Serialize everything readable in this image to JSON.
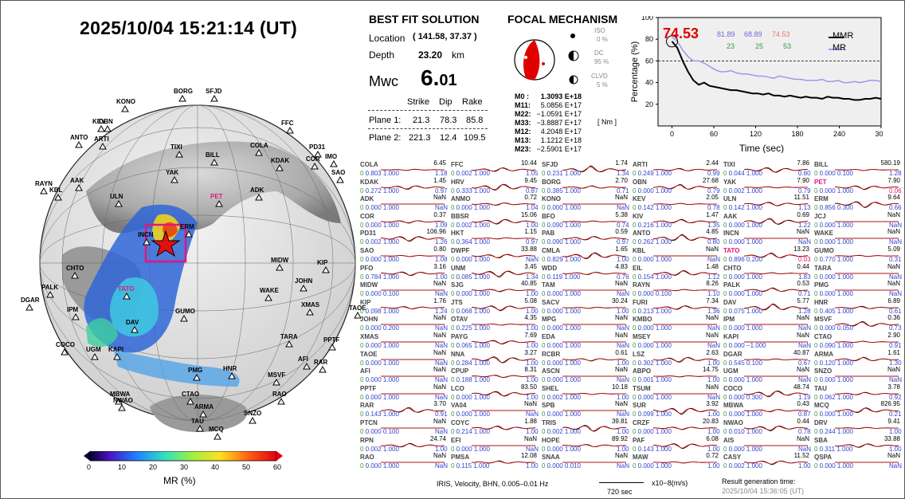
{
  "header": {
    "datetime": "2025/10/04  15:21:14 (UT)"
  },
  "best_fit": {
    "title": "BEST FIT SOLUTION",
    "location_label": "Location",
    "location_value": "( 141.58,  37.37 )",
    "depth_label": "Depth",
    "depth_value": "23.20",
    "depth_unit": "km",
    "mw_label": "Mwc",
    "mw_int": "6.",
    "mw_dec": "01",
    "col_strike": "Strike",
    "col_dip": "Dip",
    "col_rake": "Rake",
    "planes": [
      {
        "label": "Plane 1:",
        "strike": "21.3",
        "dip": "78.3",
        "rake": "85.8"
      },
      {
        "label": "Plane 2:",
        "strike": "221.3",
        "dip": "12.4",
        "rake": "109.5"
      }
    ]
  },
  "focal": {
    "title": "FOCAL MECHANISM",
    "iso_label": "ISO",
    "iso_value": "0 %",
    "dc_label": "DC",
    "dc_value": "95 %",
    "clvd_label": "CLVD",
    "clvd_value": "5 %",
    "moments": [
      {
        "k": "M0 :",
        "v": "1.3093 E+18"
      },
      {
        "k": "M11:",
        "v": "5.0856 E+17"
      },
      {
        "k": "M22:",
        "v": "−1.0591 E+17"
      },
      {
        "k": "M33:",
        "v": "−3.8887 E+17"
      },
      {
        "k": "M12:",
        "v": "4.2048 E+17"
      },
      {
        "k": "M13:",
        "v": "1.1212 E+18"
      },
      {
        "k": "M23:",
        "v": "−2.5901 E+17"
      }
    ],
    "unit": "[ Nm ]"
  },
  "mr_chart": {
    "ylabel": "Percentage (%)",
    "xlabel": "Time (sec)",
    "yticks": [
      "20",
      "40",
      "60",
      "80",
      "100"
    ],
    "xticks": [
      "0",
      "60",
      "120",
      "180",
      "240",
      "300"
    ],
    "big_value": "74.53",
    "vals_row1": [
      "81.89",
      "68.89",
      "74.53"
    ],
    "vals_row2": [
      "23",
      "25",
      "53"
    ],
    "legend_mmr": "MMR",
    "legend_mr": "MR",
    "mmr_series": [
      78,
      72,
      60,
      50,
      42,
      38,
      40,
      37,
      36,
      35,
      34,
      33,
      33,
      32,
      31,
      30,
      30,
      29,
      30,
      28,
      28,
      27,
      28,
      27,
      26,
      27,
      26,
      26,
      25,
      27,
      26,
      26,
      25,
      25,
      24,
      24,
      25,
      25,
      26,
      25
    ],
    "mr_series": [
      82,
      78,
      70,
      64,
      60,
      60,
      58,
      55,
      52,
      50,
      50,
      51,
      49,
      48,
      48,
      47,
      46,
      46,
      45,
      44,
      46,
      45,
      44,
      43,
      43,
      42,
      42,
      42,
      43,
      41,
      41,
      42,
      40,
      40,
      41,
      40,
      41,
      42,
      42,
      41
    ]
  },
  "colorbar": {
    "label": "MR (%)",
    "ticks": [
      "0",
      "10",
      "20",
      "30",
      "40",
      "50",
      "60"
    ]
  },
  "globe_stations": [
    {
      "name": "BORG"
    },
    {
      "name": "SFJD"
    },
    {
      "name": "KONO"
    },
    {
      "name": "KEV"
    },
    {
      "name": "OBN"
    },
    {
      "name": "ANTO"
    },
    {
      "name": "ARTI"
    },
    {
      "name": "FFC"
    },
    {
      "name": "PD31"
    },
    {
      "name": "COLA"
    },
    {
      "name": "TIXI"
    },
    {
      "name": "BILL"
    },
    {
      "name": "KDAK"
    },
    {
      "name": "COR"
    },
    {
      "name": "IMO"
    },
    {
      "name": "SAO"
    },
    {
      "name": "RAYN"
    },
    {
      "name": "KBL"
    },
    {
      "name": "AAK"
    },
    {
      "name": "ULN"
    },
    {
      "name": "YAK"
    },
    {
      "name": "PET"
    },
    {
      "name": "ADK"
    },
    {
      "name": "ERM"
    },
    {
      "name": "INCN"
    },
    {
      "name": "KIP"
    },
    {
      "name": "MIDW"
    },
    {
      "name": "CHTO"
    },
    {
      "name": "TATO"
    },
    {
      "name": "JOHN"
    },
    {
      "name": "PALK"
    },
    {
      "name": "DGAR"
    },
    {
      "name": "WAKE"
    },
    {
      "name": "XMAS"
    },
    {
      "name": "TAOE"
    },
    {
      "name": "IPM"
    },
    {
      "name": "GUMO"
    },
    {
      "name": "DAV"
    },
    {
      "name": "TARA"
    },
    {
      "name": "COCO"
    },
    {
      "name": "UGM"
    },
    {
      "name": "KAPI"
    },
    {
      "name": "PPTF"
    },
    {
      "name": "AFI"
    },
    {
      "name": "RAR"
    },
    {
      "name": "PMG"
    },
    {
      "name": "HNR"
    },
    {
      "name": "MSVF"
    },
    {
      "name": "MBWA"
    },
    {
      "name": "CTAO"
    },
    {
      "name": "RAO"
    },
    {
      "name": "NWAO"
    },
    {
      "name": "ARMA"
    },
    {
      "name": "SNZO"
    },
    {
      "name": "TAU"
    },
    {
      "name": "MCQ"
    }
  ],
  "stations": [
    [
      "COLA",
      "6.45",
      "0.803",
      "1.000",
      "1.18"
    ],
    [
      "FFC",
      "10.44",
      "0.002",
      "1.000",
      "1.05"
    ],
    [
      "SFJD",
      "1.74",
      "0.231",
      "1.000",
      "1.34"
    ],
    [
      "ARTI",
      "2.44",
      "0.249",
      "1.000",
      "0.99"
    ],
    [
      "TIXI",
      "7.86",
      "0.044",
      "1.000",
      "0.80"
    ],
    [
      "BILL",
      "580.19",
      "0.000",
      "0.100",
      "1.28"
    ],
    [
      "KDAK",
      "1.45",
      "0.272",
      "1.000",
      "0.97"
    ],
    [
      "HRV",
      "9.45",
      "0.333",
      "1.000",
      "0.87"
    ],
    [
      "BORG",
      "2.70",
      "0.385",
      "1.000",
      "0.71"
    ],
    [
      "OBN",
      "27.68",
      "0.000",
      "1.000",
      "0.79"
    ],
    [
      "YAK",
      "7.90",
      "0.002",
      "1.000",
      "0.79"
    ],
    [
      "PET",
      "7.90",
      "0.000",
      "1.000",
      "0.06"
    ],
    [
      "ADK",
      "NaN",
      "0.000",
      "1.000",
      "NaN"
    ],
    [
      "ANMO",
      "0.72",
      "0.000",
      "1.000",
      "1.04"
    ],
    [
      "KONO",
      "NaN",
      "0.000",
      "1.000",
      "NaN"
    ],
    [
      "KEV",
      "2.05",
      "0.142",
      "1.000",
      "0.78"
    ],
    [
      "ULN",
      "11.51",
      "0.142",
      "1.000",
      "1.13"
    ],
    [
      "ERM",
      "9.64",
      "0.856",
      "0.300",
      "0.66"
    ],
    [
      "COR",
      "0.37",
      "0.000",
      "1.000",
      "1.09"
    ],
    [
      "BBSR",
      "15.06",
      "0.002",
      "1.000",
      "1.00"
    ],
    [
      "BFO",
      "5.38",
      "0.090",
      "1.000",
      "0.74"
    ],
    [
      "KIV",
      "1.47",
      "0.216",
      "1.000",
      "1.35"
    ],
    [
      "AAK",
      "0.69",
      "0.000",
      "1.000",
      "1.22"
    ],
    [
      "JCJ",
      "NaN",
      "0.000",
      "1.000",
      "NaN"
    ],
    [
      "PD31",
      "106.96",
      "0.002",
      "1.000",
      "1.26"
    ],
    [
      "HKT",
      "1.15",
      "0.364",
      "1.000",
      "0.97"
    ],
    [
      "PAB",
      "0.59",
      "0.090",
      "1.000",
      "0.97"
    ],
    [
      "ANTO",
      "4.85",
      "0.262",
      "1.000",
      "0.80"
    ],
    [
      "INCN",
      "NaN",
      "0.000",
      "1.000",
      "NaN"
    ],
    [
      "WAKE",
      "NaN",
      "0.000",
      "1.000",
      "NaN"
    ],
    [
      "SAO",
      "0.80",
      "0.000",
      "1.000",
      "1.08"
    ],
    [
      "DWPF",
      "33.88",
      "0.000",
      "1.000",
      "NaN"
    ],
    [
      "CMLA",
      "1.65",
      "0.829",
      "1.000",
      "1.00"
    ],
    [
      "KBL",
      "NaN",
      "0.000",
      "1.000",
      "NaN"
    ],
    [
      "TATO",
      "13.23",
      "0.896",
      "0.200",
      "0.03"
    ],
    [
      "GUMO",
      "5.09",
      "0.770",
      "1.000",
      "0.31"
    ],
    [
      "PFO",
      "3.16",
      "0.784",
      "1.000",
      "1.00"
    ],
    [
      "UNM",
      "3.45",
      "0.085",
      "1.000",
      "1.34"
    ],
    [
      "WDD",
      "4.83",
      "0.119",
      "1.000",
      "0.76"
    ],
    [
      "EIL",
      "1.48",
      "0.154",
      "1.000",
      "1.12"
    ],
    [
      "CHTO",
      "0.44",
      "0.000",
      "1.000",
      "1.83"
    ],
    [
      "TARA",
      "NaN",
      "0.000",
      "1.000",
      "NaN"
    ],
    [
      "MIDW",
      "NaN",
      "0.000",
      "0.100",
      "NaN"
    ],
    [
      "SJG",
      "40.85",
      "0.000",
      "1.000",
      "1.00"
    ],
    [
      "TAM",
      "NaN",
      "0.000",
      "1.000",
      "NaN"
    ],
    [
      "RAYN",
      "8.26",
      "0.000",
      "0.100",
      "1.10"
    ],
    [
      "PALK",
      "0.53",
      "0.000",
      "1.000",
      "0.71"
    ],
    [
      "PMG",
      "NaN",
      "0.000",
      "1.000",
      "NaN"
    ],
    [
      "KIP",
      "1.76",
      "0.098",
      "1.000",
      "1.24"
    ],
    [
      "JTS",
      "5.08",
      "0.068",
      "1.000",
      "1.00"
    ],
    [
      "SACV",
      "30.24",
      "0.000",
      "1.000",
      "1.00"
    ],
    [
      "FURI",
      "7.34",
      "0.213",
      "1.000",
      "1.36"
    ],
    [
      "DAV",
      "5.77",
      "0.075",
      "1.000",
      "1.28"
    ],
    [
      "HNR",
      "6.89",
      "0.405",
      "1.000",
      "0.61"
    ],
    [
      "JOHN",
      "NaN",
      "0.000",
      "0.200",
      "NaN"
    ],
    [
      "OTAV",
      "4.35",
      "0.225",
      "1.000",
      "1.00"
    ],
    [
      "MPG",
      "NaN",
      "0.000",
      "1.000",
      "NaN"
    ],
    [
      "KMBO",
      "NaN",
      "0.000",
      "1.000",
      "NaN"
    ],
    [
      "IPM",
      "NaN",
      "0.000",
      "1.000",
      "NaN"
    ],
    [
      "MSVF",
      "0.36",
      "0.000",
      "0.050",
      "0.73"
    ],
    [
      "XMAS",
      "NaN",
      "0.000",
      "1.000",
      "NaN"
    ],
    [
      "PAYG",
      "7.69",
      "0.065",
      "1.000",
      "1.00"
    ],
    [
      "EDA",
      "NaN",
      "0.000",
      "1.000",
      "NaN"
    ],
    [
      "MSEY",
      "NaN",
      "0.000",
      "1.000",
      "NaN"
    ],
    [
      "KAPI",
      "NaN",
      "0.000",
      "−1.000",
      "NaN"
    ],
    [
      "CTAO",
      "2.90",
      "0.090",
      "1.000",
      "0.91"
    ],
    [
      "TAOE",
      "NaN",
      "0.000",
      "1.000",
      "NaN"
    ],
    [
      "NNA",
      "3.27",
      "0.284",
      "1.000",
      "1.00"
    ],
    [
      "RCBR",
      "0.61",
      "0.000",
      "1.000",
      "1.00"
    ],
    [
      "LSZ",
      "2.63",
      "0.302",
      "1.000",
      "1.00"
    ],
    [
      "DGAR",
      "40.87",
      "0.545",
      "0.100",
      "0.67"
    ],
    [
      "ARMA",
      "1.61",
      "0.120",
      "1.000",
      "1.30"
    ],
    [
      "AFI",
      "NaN",
      "0.000",
      "1.000",
      "NaN"
    ],
    [
      "CPUP",
      "8.31",
      "0.188",
      "1.000",
      "1.00"
    ],
    [
      "ASCN",
      "NaN",
      "0.000",
      "1.000",
      "NaN"
    ],
    [
      "ABPO",
      "14.75",
      "0.001",
      "1.000",
      "1.00"
    ],
    [
      "UGM",
      "NaN",
      "0.000",
      "1.000",
      "NaN"
    ],
    [
      "SNZO",
      "NaN",
      "0.000",
      "1.000",
      "NaN"
    ],
    [
      "PPTF",
      "NaN",
      "0.000",
      "1.000",
      "NaN"
    ],
    [
      "LCO",
      "83.50",
      "0.000",
      "1.000",
      "1.00"
    ],
    [
      "SHEL",
      "10.18",
      "0.002",
      "1.000",
      "1.00"
    ],
    [
      "TSUM",
      "NaN",
      "0.000",
      "1.000",
      "NaN"
    ],
    [
      "COCO",
      "48.74",
      "0.000",
      "0.300",
      "1.19"
    ],
    [
      "TAU",
      "3.78",
      "0.062",
      "1.000",
      "0.92"
    ],
    [
      "RAR",
      "3.70",
      "0.143",
      "1.000",
      "0.91"
    ],
    [
      "VA04",
      "NaN",
      "0.000",
      "1.000",
      "NaN"
    ],
    [
      "SPB",
      "NaN",
      "0.000",
      "1.000",
      "NaN"
    ],
    [
      "SUR",
      "3.92",
      "0.099",
      "1.000",
      "1.00"
    ],
    [
      "MBWA",
      "0.43",
      "0.000",
      "1.000",
      "0.87"
    ],
    [
      "MCQ",
      "826.95",
      "0.000",
      "1.000",
      "0.21"
    ],
    [
      "PTCN",
      "NaN",
      "0.000",
      "0.100",
      "NaN"
    ],
    [
      "COYC",
      "1.88",
      "0.214",
      "1.000",
      "1.00"
    ],
    [
      "TRIS",
      "39.81",
      "0.002",
      "1.000",
      "1.00"
    ],
    [
      "CRZF",
      "20.83",
      "0.000",
      "1.000",
      "1.00"
    ],
    [
      "NWAO",
      "0.44",
      "0.010",
      "1.000",
      "0.78"
    ],
    [
      "DRV",
      "9.41",
      "0.244",
      "1.000",
      "1.00"
    ],
    [
      "RPN",
      "24.74",
      "0.002",
      "1.000",
      "1.00"
    ],
    [
      "EFI",
      "NaN",
      "0.000",
      "1.000",
      "NaN"
    ],
    [
      "HOPE",
      "89.92",
      "0.000",
      "1.000",
      "1.00"
    ],
    [
      "PAF",
      "6.08",
      "0.143",
      "1.000",
      "1.00"
    ],
    [
      "AIS",
      "NaN",
      "0.000",
      "1.000",
      "NaN"
    ],
    [
      "SBA",
      "33.88",
      "0.311",
      "1.000",
      "1.00"
    ],
    [
      "RAO",
      "NaN",
      "0.000",
      "1.000",
      "NaN"
    ],
    [
      "PMSA",
      "12.08",
      "0.115",
      "1.000",
      "1.00"
    ],
    [
      "SNAA",
      "NaN",
      "0.000",
      "0.010",
      "NaN"
    ],
    [
      "MAW",
      "0.72",
      "0.000",
      "1.000",
      "1.00"
    ],
    [
      "CASY",
      "11.52",
      "0.002",
      "1.000",
      "1.00"
    ],
    [
      "QSPA",
      "NaN",
      "0.000",
      "1.000",
      "NaN"
    ]
  ],
  "highlight_stations": [
    "PET",
    "TATO"
  ],
  "footer": {
    "left": "IRIS, Velocity,  BHN,  0.005–0.01 Hz",
    "scale": "720 sec",
    "unit": "x10−8(m/s)",
    "gen_label": "Result generation time:",
    "gen_time": "2025/10/04 15:36:05 (UT)"
  },
  "colors": {
    "mmr": "#000000",
    "mr": "#9999ee",
    "red": "#e00000",
    "pink": "#e0177a",
    "green": "#3a9a3a",
    "blue": "#3344cc"
  }
}
